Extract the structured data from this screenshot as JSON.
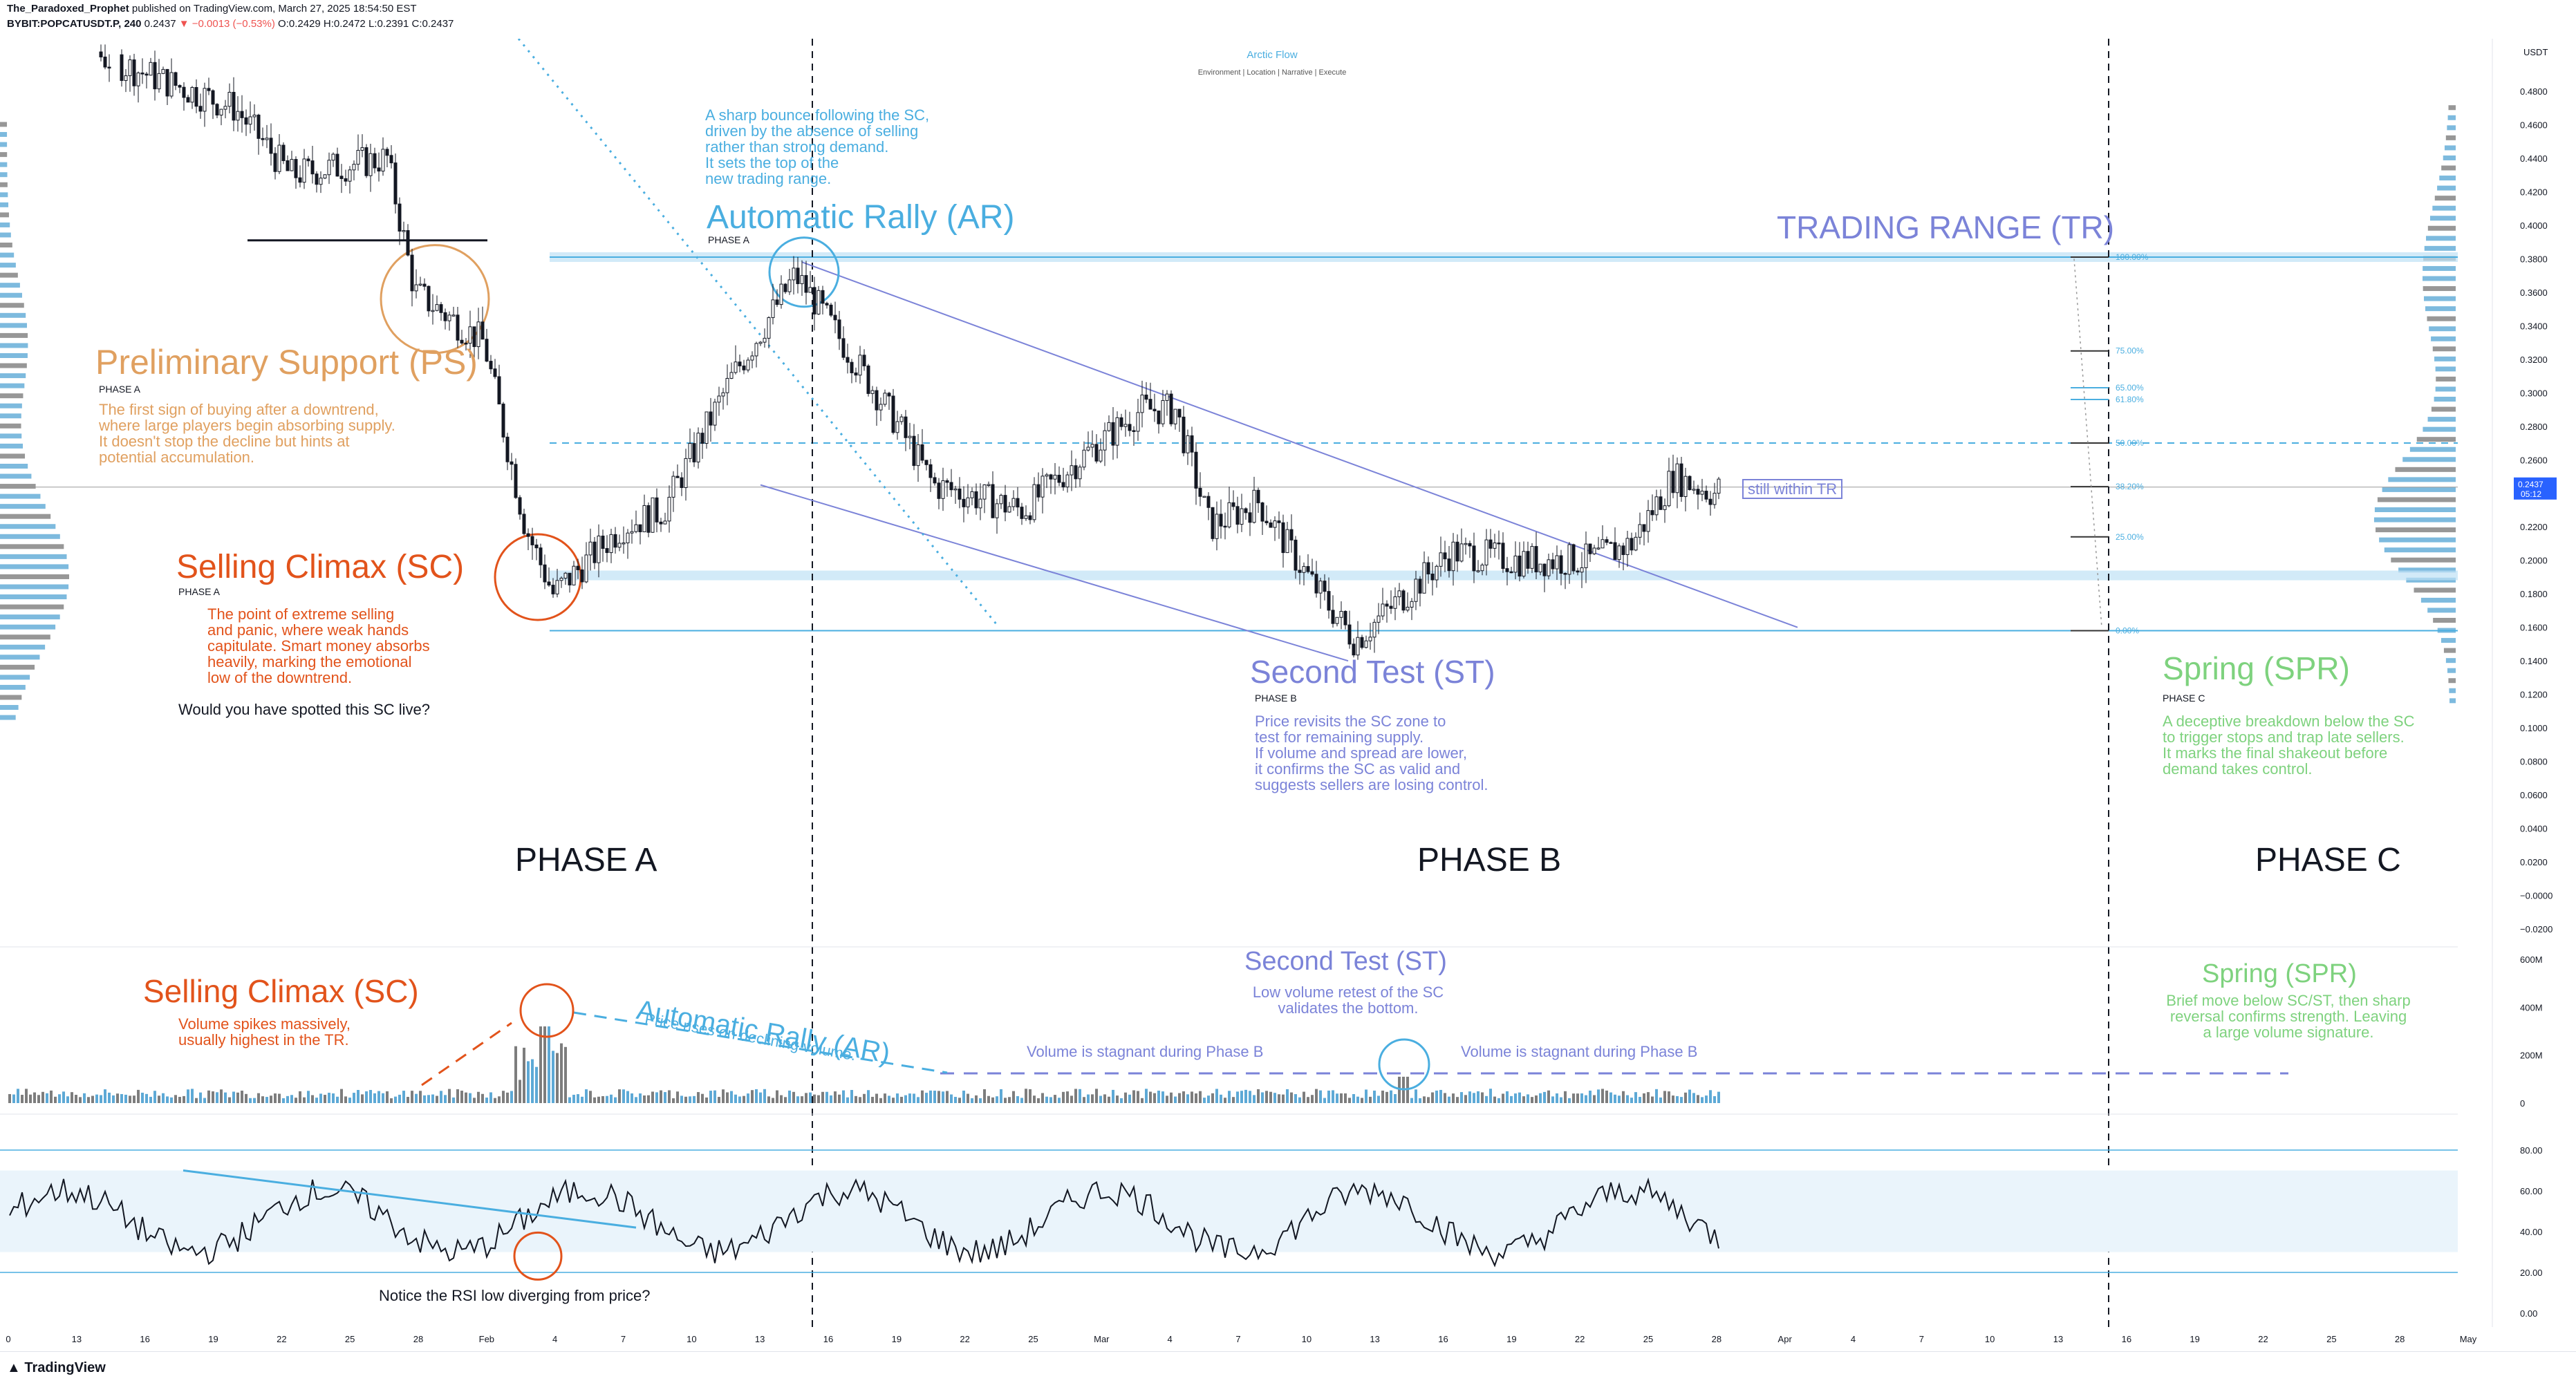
{
  "header": {
    "author": "The_Paradoxed_Prophet",
    "published": "published on TradingView.com, March 27, 2025 18:54:50 EST",
    "symbol": "BYBIT:POPCATUSDT.P, 240",
    "last": "0.2437",
    "change": "▼ −0.0013 (−0.53%)",
    "ohlc": "O:0.2429 H:0.2472 L:0.2391 C:0.2437"
  },
  "watermark": {
    "title": "Arctic Flow",
    "subtitle": "Environment | Location | Narrative | Execute"
  },
  "footer": {
    "logo": "TradingView"
  },
  "colors": {
    "orange_ps": "#e0a060",
    "orange_sc": "#e2531b",
    "blue_ar": "#4aaee0",
    "purple_st": "#7b83d8",
    "green_spr": "#7ed27e",
    "up": "#26a69a",
    "down": "#ef5350"
  },
  "annotations": {
    "ps": {
      "title": "Preliminary Support (PS)",
      "phase": "PHASE A",
      "text": "The first sign of buying after a downtrend,\nwhere large players begin absorbing supply.\nIt doesn't stop the decline but hints at\npotential accumulation."
    },
    "sc": {
      "title": "Selling Climax  (SC)",
      "phase": "PHASE A",
      "text": "The point of extreme selling\nand panic, where weak hands\ncapitulate. Smart money absorbs\nheavily, marking the emotional\nlow of the downtrend.",
      "question": "Would you have spotted this SC live?"
    },
    "ar": {
      "title": "Automatic Rally (AR)",
      "phase": "PHASE A",
      "text": "A sharp bounce following the SC,\ndriven by the absence of selling\nrather than strong demand.\nIt sets the top of the\nnew trading range."
    },
    "tr": {
      "title": "TRADING RANGE (TR)",
      "note": "still within TR"
    },
    "st": {
      "title": "Second Test (ST)",
      "phase": "PHASE B",
      "text": "Price revisits the SC zone to\ntest for remaining supply.\nIf volume and spread are lower,\nit confirms the SC as valid and\nsuggests sellers are losing control."
    },
    "spr": {
      "title": "Spring (SPR)",
      "phase": "PHASE C",
      "text": "A deceptive breakdown below the SC\nto trigger stops and trap late sellers.\nIt marks the final shakeout before\ndemand takes control."
    },
    "phase_a": "PHASE A",
    "phase_b": "PHASE B",
    "phase_c": "PHASE C",
    "vol_sc": {
      "title": "Selling Climax (SC)",
      "text": "Volume spikes massively,\nusually highest in the TR."
    },
    "vol_ar": {
      "title": "Automatic Rally (AR)",
      "text": "Price rises on declining volume."
    },
    "vol_st": {
      "title": "Second Test (ST)",
      "text": "Low volume retest of the SC\nvalidates the bottom."
    },
    "vol_spr": {
      "title": "Spring (SPR)",
      "text": "Brief move below SC/ST, then sharp\nreversal confirms strength. Leaving\na large volume signature."
    },
    "vol_stag1": "Volume is stagnant during Phase B",
    "vol_stag2": "Volume is stagnant during Phase B",
    "rsi_note": "Notice the RSI low diverging from price?"
  },
  "chart_data": {
    "type": "candlestick",
    "price_axis": {
      "unit": "USDT",
      "ticks": [
        "0.4800",
        "0.4600",
        "0.4400",
        "0.4200",
        "0.4000",
        "0.3800",
        "0.3600",
        "0.3400",
        "0.3200",
        "0.3000",
        "0.2800",
        "0.2600",
        "0.2400",
        "0.2200",
        "0.2000",
        "0.1800",
        "0.1600",
        "0.1400",
        "0.1200",
        "0.1000",
        "0.0800",
        "0.0600",
        "0.0400",
        "0.0200",
        "−0.0000",
        "−0.0200"
      ],
      "current_price": "0.2437",
      "countdown": "05:12"
    },
    "time_axis": [
      "0",
      "13",
      "16",
      "19",
      "22",
      "25",
      "28",
      "Feb",
      "4",
      "7",
      "10",
      "13",
      "16",
      "19",
      "22",
      "25",
      "Mar",
      "4",
      "7",
      "10",
      "13",
      "16",
      "19",
      "22",
      "25",
      "28",
      "Apr",
      "4",
      "7",
      "10",
      "13",
      "16",
      "19",
      "22",
      "25",
      "28",
      "May"
    ],
    "fib_levels": [
      "100.00%",
      "75.00%",
      "65.00%",
      "61.80%",
      "50.00%",
      "38.20%",
      "25.00%",
      "0.00%"
    ],
    "key_levels": {
      "ar_high": 0.381,
      "sc_low": 0.158,
      "tr_mid_dashed": 0.27,
      "st_low": 0.142,
      "current": 0.2437
    },
    "volume_axis": [
      "600M",
      "400M",
      "200M",
      "0"
    ],
    "rsi_axis": [
      "80.00",
      "60.00",
      "40.00",
      "20.00",
      "0.00"
    ],
    "rsi_levels": {
      "upper": 70,
      "lower": 30
    }
  }
}
